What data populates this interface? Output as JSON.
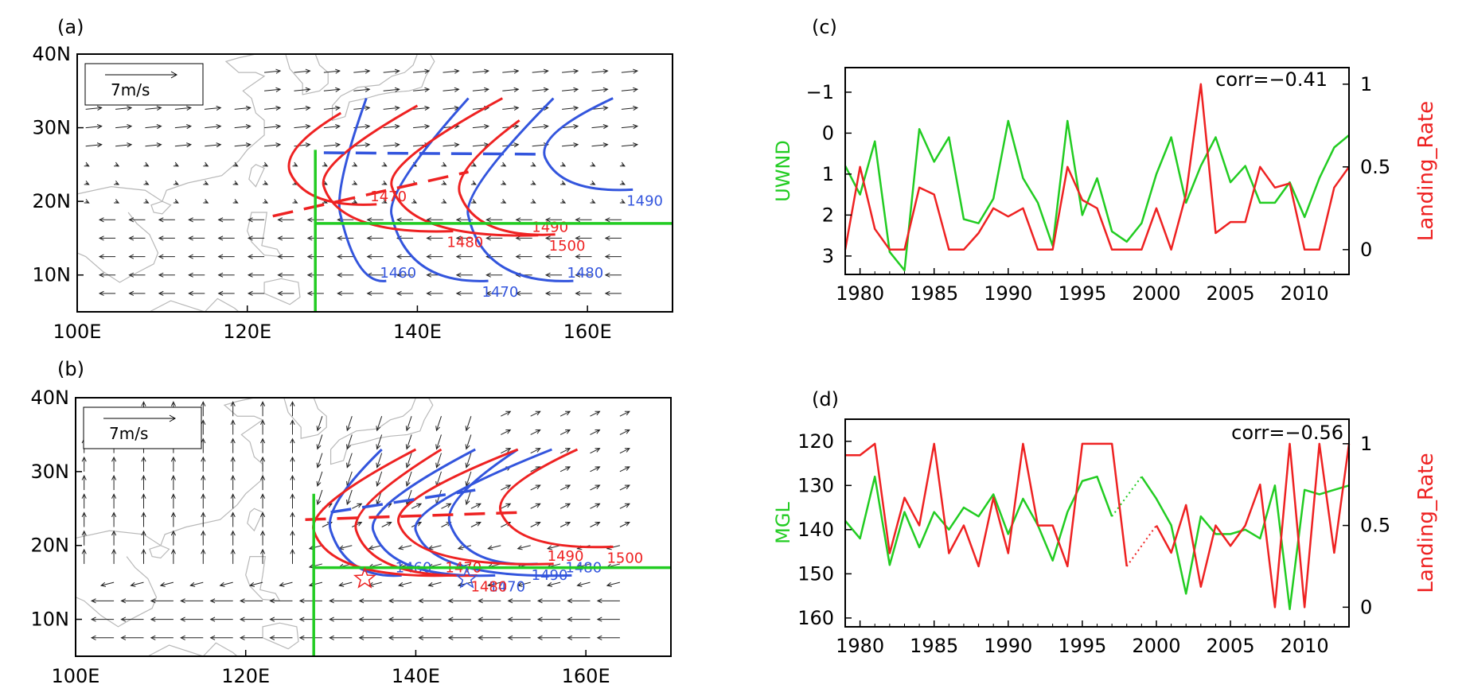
{
  "figure": {
    "panels": {
      "a": {
        "label": "(a)",
        "scale_label": "7m/s"
      },
      "b": {
        "label": "(b)",
        "scale_label": "7m/s"
      },
      "c": {
        "label": "(c)"
      },
      "d": {
        "label": "(d)"
      }
    },
    "map_axes": {
      "x_ticks": [
        "100E",
        "120E",
        "140E",
        "160E"
      ],
      "y_ticks": [
        "10N",
        "20N",
        "30N",
        "40N"
      ]
    }
  },
  "chart_data": [
    {
      "id": "a",
      "type": "map",
      "title": "(a)",
      "x_range": [
        100,
        170
      ],
      "y_range": [
        5,
        40
      ],
      "x_ticks": [
        100,
        120,
        140,
        160
      ],
      "y_ticks": [
        10,
        20,
        30,
        40
      ],
      "vector_scale": "7m/s",
      "reference_lines": {
        "lon": 128,
        "lat": 17,
        "color": "#22cc22"
      },
      "contours": [
        {
          "label": "1460",
          "color": "#3355dd",
          "vertex": [
            131,
            18
          ],
          "top": [
            134,
            34
          ]
        },
        {
          "label": "1470",
          "color": "#3355dd",
          "vertex": [
            137,
            18
          ],
          "top": [
            146,
            34
          ]
        },
        {
          "label": "1480",
          "color": "#3355dd",
          "vertex": [
            146,
            18
          ],
          "top": [
            156,
            34
          ]
        },
        {
          "label": "1490",
          "color": "#3355dd",
          "vertex": [
            155,
            26
          ],
          "top": [
            163,
            34
          ]
        },
        {
          "label": "1470",
          "color": "#ee2222",
          "vertex": [
            125,
            24
          ],
          "top": [
            131,
            32
          ]
        },
        {
          "label": "1480",
          "color": "#ee2222",
          "vertex": [
            129,
            22
          ],
          "top": [
            140,
            33
          ]
        },
        {
          "label": "1490",
          "color": "#ee2222",
          "vertex": [
            137,
            22
          ],
          "top": [
            150,
            34
          ]
        },
        {
          "label": "1500",
          "color": "#ee2222",
          "vertex": [
            145,
            21
          ],
          "top": [
            152,
            31
          ]
        }
      ],
      "ridge_lines": [
        {
          "color": "#3355dd",
          "from": [
            129,
            26.6
          ],
          "to": [
            155,
            26.4
          ]
        },
        {
          "color": "#ee2222",
          "from": [
            123,
            18
          ],
          "to": [
            146,
            24
          ]
        }
      ]
    },
    {
      "id": "b",
      "type": "map",
      "title": "(b)",
      "x_range": [
        100,
        170
      ],
      "y_range": [
        5,
        40
      ],
      "x_ticks": [
        100,
        120,
        140,
        160
      ],
      "y_ticks": [
        10,
        20,
        30,
        40
      ],
      "vector_scale": "7m/s",
      "reference_lines": {
        "lon": 128,
        "lat": 17,
        "color": "#22cc22"
      },
      "contours": [
        {
          "label": "1460",
          "color": "#3355dd",
          "vertex": [
            130,
            22
          ],
          "top": [
            136,
            33
          ]
        },
        {
          "label": "1470",
          "color": "#3355dd",
          "vertex": [
            135,
            22
          ],
          "top": [
            147,
            33
          ]
        },
        {
          "label": "1480",
          "color": "#3355dd",
          "vertex": [
            140,
            22
          ],
          "top": [
            156,
            33
          ]
        },
        {
          "label": "1490",
          "color": "#3355dd",
          "vertex": [
            144,
            23
          ],
          "top": [
            152,
            33
          ]
        },
        {
          "label": "1470",
          "color": "#ee2222",
          "vertex": [
            128,
            22
          ],
          "top": [
            140,
            33
          ]
        },
        {
          "label": "1480",
          "color": "#ee2222",
          "vertex": [
            133,
            22
          ],
          "top": [
            143,
            33
          ]
        },
        {
          "label": "1490",
          "color": "#ee2222",
          "vertex": [
            138,
            23
          ],
          "top": [
            152,
            33
          ]
        },
        {
          "label": "1500",
          "color": "#ee2222",
          "vertex": [
            150,
            24.5
          ],
          "top": [
            159,
            33
          ]
        }
      ],
      "ridge_lines": [
        {
          "color": "#3355dd",
          "from": [
            130,
            24.5
          ],
          "to": [
            147,
            27.5
          ]
        },
        {
          "color": "#ee2222",
          "from": [
            127,
            23.5
          ],
          "to": [
            153,
            24.5
          ]
        }
      ],
      "markers": [
        {
          "label": "star",
          "color": "#ee2222",
          "at": [
            134,
            15.5
          ]
        },
        {
          "label": "star",
          "color": "#3355dd",
          "at": [
            146,
            15.5
          ]
        }
      ]
    },
    {
      "id": "c",
      "type": "line",
      "title": "(c)",
      "annotation": "corr=−0.41",
      "x_range": [
        1979,
        2013
      ],
      "x_ticks": [
        1980,
        1985,
        1990,
        1995,
        2000,
        2005,
        2010
      ],
      "y_left": {
        "label": "UWND",
        "color": "#22cc22",
        "range": [
          -1.6,
          3.45
        ],
        "inverted": true,
        "ticks": [
          -1,
          0,
          1,
          2,
          3
        ],
        "tick_labels": [
          "−1",
          "0",
          "1",
          "2",
          "3"
        ]
      },
      "y_right": {
        "label": "Landing_Rate",
        "color": "#ee2222",
        "range": [
          -0.15,
          1.1
        ],
        "ticks": [
          0,
          0.5,
          1
        ],
        "tick_labels": [
          "0",
          "0.5",
          "1"
        ]
      },
      "x": [
        1979,
        1980,
        1981,
        1982,
        1983,
        1984,
        1985,
        1986,
        1987,
        1988,
        1989,
        1990,
        1991,
        1992,
        1993,
        1994,
        1995,
        1996,
        1997,
        1998,
        1999,
        2000,
        2001,
        2002,
        2003,
        2004,
        2005,
        2006,
        2007,
        2008,
        2009,
        2010,
        2011,
        2012,
        2013
      ],
      "series": [
        {
          "name": "UWND",
          "axis": "left",
          "color": "#22cc22",
          "values": [
            0.8,
            1.5,
            0.2,
            2.9,
            3.35,
            -0.1,
            0.7,
            0.1,
            2.1,
            2.2,
            1.6,
            -0.3,
            1.1,
            1.7,
            2.75,
            -0.3,
            2.0,
            1.1,
            2.4,
            2.65,
            2.2,
            1.0,
            0.1,
            1.7,
            0.8,
            0.1,
            1.2,
            0.8,
            1.7,
            1.7,
            1.2,
            2.05,
            1.1,
            0.35,
            0.05
          ]
        },
        {
          "name": "Landing_Rate",
          "axis": "right",
          "color": "#ee2222",
          "values": [
            0,
            0.5,
            0.125,
            0,
            0,
            0.375,
            0.333,
            0,
            0,
            0.1,
            0.25,
            0.2,
            0.25,
            0,
            0,
            0.5,
            0.3,
            0.25,
            0,
            0,
            0,
            0.25,
            0,
            0.333,
            1,
            0.1,
            0.167,
            0.167,
            0.5,
            0.375,
            0.4,
            0,
            0,
            0.375,
            0.5
          ]
        }
      ]
    },
    {
      "id": "d",
      "type": "line",
      "title": "(d)",
      "annotation": "corr=−0.56",
      "x_range": [
        1979,
        2013
      ],
      "x_ticks": [
        1980,
        1985,
        1990,
        1995,
        2000,
        2005,
        2010
      ],
      "y_left": {
        "label": "MGL",
        "color": "#22cc22",
        "range": [
          115,
          162
        ],
        "inverted": true,
        "ticks": [
          120,
          130,
          140,
          150,
          160
        ],
        "tick_labels": [
          "120",
          "130",
          "140",
          "150",
          "160"
        ]
      },
      "y_right": {
        "label": "Landing_Rate",
        "color": "#ee2222",
        "range": [
          -0.12,
          1.15
        ],
        "ticks": [
          0,
          0.5,
          1
        ],
        "tick_labels": [
          "0",
          "0.5",
          "1"
        ]
      },
      "x": [
        1979,
        1980,
        1981,
        1982,
        1983,
        1984,
        1985,
        1986,
        1987,
        1988,
        1989,
        1990,
        1991,
        1992,
        1993,
        1994,
        1995,
        1996,
        1997,
        1998,
        1999,
        2000,
        2001,
        2002,
        2003,
        2004,
        2005,
        2006,
        2007,
        2008,
        2009,
        2010,
        2011,
        2012,
        2013
      ],
      "series": [
        {
          "name": "MGL",
          "axis": "left",
          "color": "#22cc22",
          "values": [
            138,
            142,
            128,
            148,
            136,
            144,
            136,
            140,
            135,
            137,
            132,
            141,
            133,
            139,
            147,
            136,
            129,
            128,
            137,
            null,
            128,
            133,
            139,
            154.5,
            137,
            141,
            141,
            140,
            142,
            130,
            158,
            131,
            132,
            131,
            130
          ]
        },
        {
          "name": "Landing_Rate",
          "axis": "right",
          "color": "#ee2222",
          "values": [
            0.93,
            0.93,
            1,
            0.33,
            0.67,
            0.5,
            1,
            0.33,
            0.5,
            0.25,
            0.67,
            0.33,
            1,
            0.5,
            0.5,
            0.25,
            1,
            1,
            1,
            0.25,
            null,
            0.5,
            0.333,
            0.625,
            0.125,
            0.5,
            0.375,
            0.5,
            0.75,
            0,
            1,
            0,
            1,
            0.333,
            1
          ]
        }
      ]
    }
  ]
}
